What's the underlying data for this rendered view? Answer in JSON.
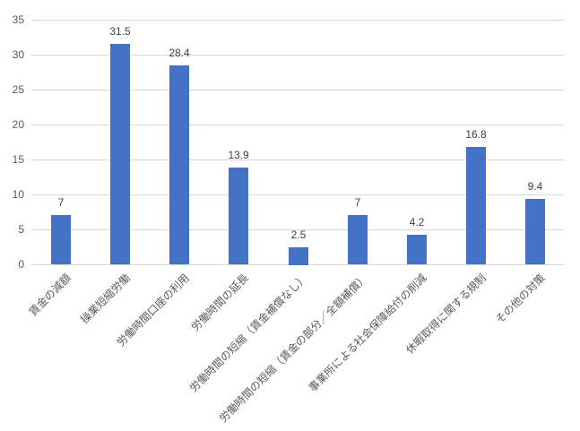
{
  "chart_data": {
    "type": "bar",
    "title": "",
    "xlabel": "",
    "ylabel": "",
    "categories": [
      "賃金の減額",
      "操業短縮労働",
      "労働時間口座の利用",
      "労働時間の延長",
      "労働時間の短縮（賃金補償なし）",
      "労働時間の短縮（賃金の部分／全額補償）",
      "事業所による社会保障給付の削減",
      "休暇取得に関する規制",
      "その他の対策"
    ],
    "values": [
      7,
      31.5,
      28.4,
      13.9,
      2.5,
      7,
      4.2,
      16.8,
      9.4
    ],
    "data_labels": [
      "7",
      "31.5",
      "28.4",
      "13.9",
      "2.5",
      "7",
      "4.2",
      "16.8",
      "9.4"
    ],
    "ylim": [
      0,
      35
    ],
    "yticks": [
      0,
      5,
      10,
      15,
      20,
      25,
      30,
      35
    ],
    "grid": true,
    "legend": false,
    "x_label_rotation_deg": -45,
    "colors": {
      "bar_fill": "#4472C4",
      "gridline": "#D9D9D9",
      "axis_text": "#595959",
      "data_label_text": "#404040"
    }
  }
}
